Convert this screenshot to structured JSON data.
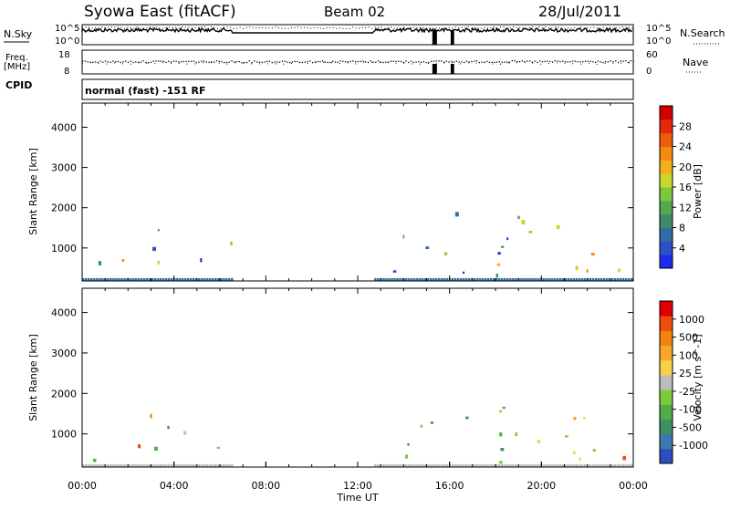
{
  "header": {
    "station": "Syowa East (fitACF)",
    "beam": "Beam 02",
    "date": "28/Jul/2011"
  },
  "top_panels": {
    "nsky": {
      "label": "N.Sky",
      "tick_top": "10^5",
      "tick_bottom": "10^0"
    },
    "nsearch": {
      "label": "N.Search",
      "tick_top": "10^5",
      "tick_bottom": "10^0"
    },
    "freq": {
      "label_line1": "Freq.",
      "label_line2": "[MHz]",
      "tick_top": "18",
      "tick_bottom": "8"
    },
    "nave": {
      "label": "Nave",
      "tick_top": "60",
      "tick_bottom": "0"
    },
    "cpid": {
      "label": "CPID",
      "mode": "normal (fast) -151 RF"
    }
  },
  "chart_data": [
    {
      "type": "heatmap",
      "name": "power",
      "ylabel": "Slant Range [km]",
      "yticks": [
        "1000",
        "2000",
        "3000",
        "4000"
      ],
      "ylim": [
        180,
        4600
      ],
      "xlim_hours": [
        0,
        24
      ],
      "colorbar": {
        "label": "Power [dB]",
        "ticks": [
          "4",
          "8",
          "12",
          "16",
          "20",
          "24",
          "28"
        ],
        "colors": [
          "#1b2cf0",
          "#2e4fc9",
          "#2f6ea6",
          "#3f8a6b",
          "#56a84f",
          "#7cc73a",
          "#c8d82a",
          "#f2b01c",
          "#f28a14",
          "#ef5a10",
          "#e52a0c",
          "#d40000"
        ]
      },
      "data_gap_hours": [
        6.5,
        12.7
      ]
    },
    {
      "type": "heatmap",
      "name": "velocity",
      "ylabel": "Slant Range [km]",
      "yticks": [
        "1000",
        "2000",
        "3000",
        "4000"
      ],
      "ylim": [
        180,
        4600
      ],
      "xlim_hours": [
        0,
        24
      ],
      "colorbar": {
        "label": "Velocity [m s^-1]",
        "ticks": [
          "1000",
          "500",
          "100",
          "25",
          "-25",
          "-100",
          "-500",
          "-1000"
        ],
        "colors": [
          "#2b4fbd",
          "#3b7ab0",
          "#3f8f66",
          "#4fae47",
          "#7ccb3a",
          "#bdbdbd",
          "#f6d24a",
          "#f7a72b",
          "#f28212",
          "#ec4f0d",
          "#e00000"
        ]
      },
      "data_gap_hours": [
        6.5,
        12.7
      ]
    }
  ],
  "xaxis": {
    "label": "Time UT",
    "ticks": [
      "00:00",
      "04:00",
      "08:00",
      "12:00",
      "16:00",
      "20:00",
      "00:00"
    ]
  }
}
